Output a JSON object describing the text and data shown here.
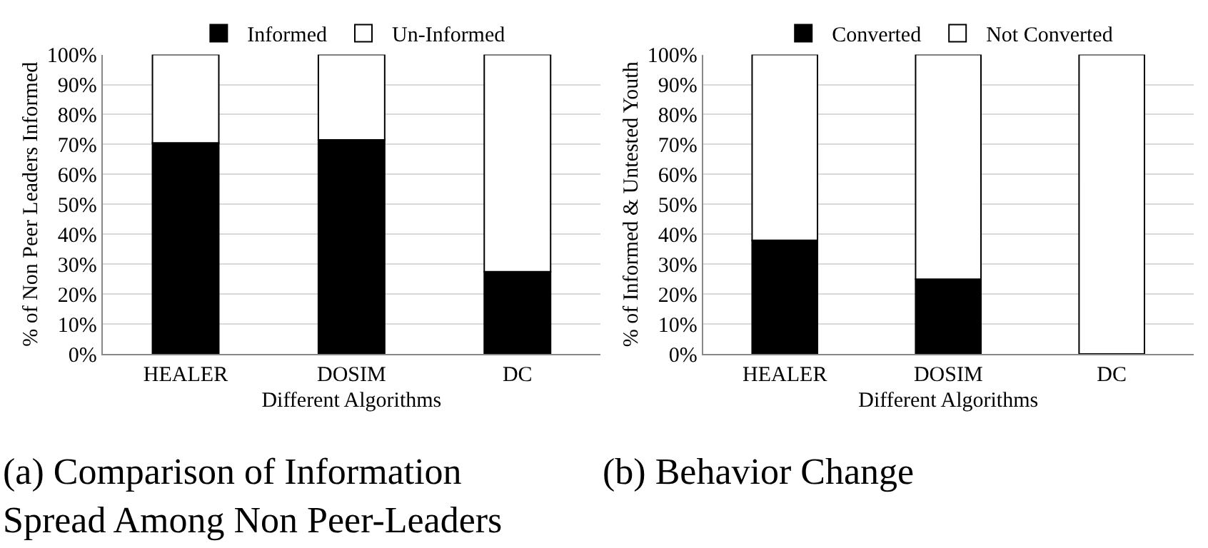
{
  "chart_data": [
    {
      "type": "bar",
      "title": "(a) Comparison of Information Spread Among Non Peer-Leaders",
      "xlabel": "Different Algorithms",
      "ylabel": "% of Non Peer Leaders Informed",
      "categories": [
        "HEALER",
        "DOSIM",
        "DC"
      ],
      "stacked": true,
      "series": [
        {
          "name": "Informed",
          "color": "#000000",
          "values": [
            70.5,
            71.5,
            27.5
          ]
        },
        {
          "name": "Un-Informed",
          "color": "#ffffff",
          "values": [
            29.5,
            28.5,
            72.5
          ]
        }
      ],
      "ylim": [
        0,
        100
      ],
      "yticks": [
        {
          "value": 0,
          "label": "0%"
        },
        {
          "value": 10,
          "label": "10%"
        },
        {
          "value": 20,
          "label": "20%"
        },
        {
          "value": 30,
          "label": "30%"
        },
        {
          "value": 40,
          "label": "40%"
        },
        {
          "value": 50,
          "label": "50%"
        },
        {
          "value": 60,
          "label": "60%"
        },
        {
          "value": 70,
          "label": "70%"
        },
        {
          "value": 80,
          "label": "80%"
        },
        {
          "value": 90,
          "label": "90%"
        },
        {
          "value": 100,
          "label": "100%"
        }
      ],
      "grid": "y",
      "legend": "top"
    },
    {
      "type": "bar",
      "title": "(b) Behavior Change",
      "xlabel": "Different Algorithms",
      "ylabel": "% of Informed & Untested Youth",
      "categories": [
        "HEALER",
        "DOSIM",
        "DC"
      ],
      "stacked": true,
      "series": [
        {
          "name": "Converted",
          "color": "#000000",
          "values": [
            38,
            25,
            0
          ]
        },
        {
          "name": "Not Converted",
          "color": "#ffffff",
          "values": [
            62,
            75,
            100
          ]
        }
      ],
      "ylim": [
        0,
        100
      ],
      "yticks": [
        {
          "value": 0,
          "label": "0%"
        },
        {
          "value": 10,
          "label": "10%"
        },
        {
          "value": 20,
          "label": "20%"
        },
        {
          "value": 30,
          "label": "30%"
        },
        {
          "value": 40,
          "label": "40%"
        },
        {
          "value": 50,
          "label": "50%"
        },
        {
          "value": 60,
          "label": "60%"
        },
        {
          "value": 70,
          "label": "70%"
        },
        {
          "value": 80,
          "label": "80%"
        },
        {
          "value": 90,
          "label": "90%"
        },
        {
          "value": 100,
          "label": "100%"
        }
      ],
      "grid": "y",
      "legend": "top"
    }
  ]
}
